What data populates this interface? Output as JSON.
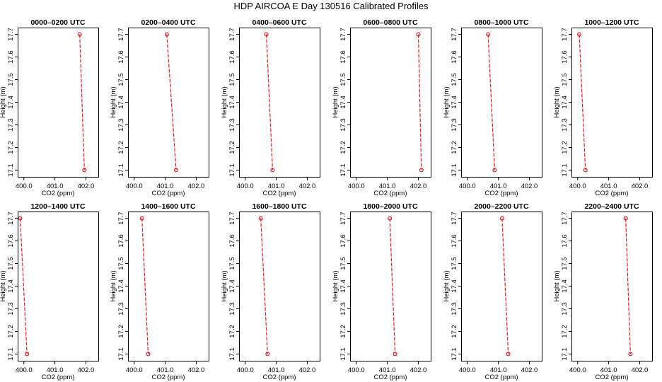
{
  "figure_title": "HDP AIRCOA E  Day 130516  Calibrated Profiles",
  "colors": {
    "series": "#e8191c",
    "axis": "#000000",
    "background": "#ffffff"
  },
  "chart_data": [
    {
      "type": "line",
      "title": "0000–0200 UTC",
      "xlabel": "CO2 (ppm)",
      "ylabel": "Height (m)",
      "x": [
        401.8,
        401.95
      ],
      "y": [
        17.7,
        17.1
      ],
      "xlim": [
        399.8,
        402.4
      ],
      "ylim": [
        17.07,
        17.73
      ],
      "xticks": [
        "400.0",
        "401.0",
        "402.0"
      ],
      "yticks": [
        "17.1",
        "17.2",
        "17.3",
        "17.4",
        "17.5",
        "17.6",
        "17.7"
      ]
    },
    {
      "type": "line",
      "title": "0200–0400 UTC",
      "xlabel": "CO2 (ppm)",
      "ylabel": "Height (m)",
      "x": [
        401.05,
        401.35
      ],
      "y": [
        17.7,
        17.1
      ],
      "xlim": [
        399.8,
        402.4
      ],
      "ylim": [
        17.07,
        17.73
      ],
      "xticks": [
        "400.0",
        "401.0",
        "402.0"
      ],
      "yticks": [
        "17.1",
        "17.2",
        "17.3",
        "17.4",
        "17.5",
        "17.6",
        "17.7"
      ]
    },
    {
      "type": "line",
      "title": "0400–0600 UTC",
      "xlabel": "CO2 (ppm)",
      "ylabel": "Height (m)",
      "x": [
        400.68,
        400.88
      ],
      "y": [
        17.7,
        17.1
      ],
      "xlim": [
        399.8,
        402.4
      ],
      "ylim": [
        17.07,
        17.73
      ],
      "xticks": [
        "400.0",
        "401.0",
        "402.0"
      ],
      "yticks": [
        "17.1",
        "17.2",
        "17.3",
        "17.4",
        "17.5",
        "17.6",
        "17.7"
      ]
    },
    {
      "type": "line",
      "title": "0600–0800 UTC",
      "xlabel": "CO2 (ppm)",
      "ylabel": "Height (m)",
      "x": [
        402.0,
        402.1
      ],
      "y": [
        17.7,
        17.1
      ],
      "xlim": [
        399.8,
        402.4
      ],
      "ylim": [
        17.07,
        17.73
      ],
      "xticks": [
        "400.0",
        "401.0",
        "402.0"
      ],
      "yticks": [
        "17.1",
        "17.2",
        "17.3",
        "17.4",
        "17.5",
        "17.6",
        "17.7"
      ]
    },
    {
      "type": "line",
      "title": "0800–1000 UTC",
      "xlabel": "CO2 (ppm)",
      "ylabel": "Height (m)",
      "x": [
        400.67,
        400.88
      ],
      "y": [
        17.7,
        17.1
      ],
      "xlim": [
        399.8,
        402.4
      ],
      "ylim": [
        17.07,
        17.73
      ],
      "xticks": [
        "400.0",
        "401.0",
        "402.0"
      ],
      "yticks": [
        "17.1",
        "17.2",
        "17.3",
        "17.4",
        "17.5",
        "17.6",
        "17.7"
      ]
    },
    {
      "type": "line",
      "title": "1000–1200 UTC",
      "xlabel": "CO2 (ppm)",
      "ylabel": "Height (m)",
      "x": [
        400.05,
        400.25
      ],
      "y": [
        17.7,
        17.1
      ],
      "xlim": [
        399.8,
        402.4
      ],
      "ylim": [
        17.07,
        17.73
      ],
      "xticks": [
        "400.0",
        "401.0",
        "402.0"
      ],
      "yticks": [
        "17.1",
        "17.2",
        "17.3",
        "17.4",
        "17.5",
        "17.6",
        "17.7"
      ]
    },
    {
      "type": "line",
      "title": "1200–1400 UTC",
      "xlabel": "CO2 (ppm)",
      "ylabel": "Height (m)",
      "x": [
        399.88,
        400.1
      ],
      "y": [
        17.7,
        17.1
      ],
      "xlim": [
        399.8,
        402.4
      ],
      "ylim": [
        17.07,
        17.73
      ],
      "xticks": [
        "400.0",
        "401.0",
        "402.0"
      ],
      "yticks": [
        "17.1",
        "17.2",
        "17.3",
        "17.4",
        "17.5",
        "17.6",
        "17.7"
      ]
    },
    {
      "type": "line",
      "title": "1400–1600 UTC",
      "xlabel": "CO2 (ppm)",
      "ylabel": "Height (m)",
      "x": [
        400.25,
        400.45
      ],
      "y": [
        17.7,
        17.1
      ],
      "xlim": [
        399.8,
        402.4
      ],
      "ylim": [
        17.07,
        17.73
      ],
      "xticks": [
        "400.0",
        "401.0",
        "402.0"
      ],
      "yticks": [
        "17.1",
        "17.2",
        "17.3",
        "17.4",
        "17.5",
        "17.6",
        "17.7"
      ]
    },
    {
      "type": "line",
      "title": "1600–1800 UTC",
      "xlabel": "CO2 (ppm)",
      "ylabel": "Height (m)",
      "x": [
        400.5,
        400.72
      ],
      "y": [
        17.7,
        17.1
      ],
      "xlim": [
        399.8,
        402.4
      ],
      "ylim": [
        17.07,
        17.73
      ],
      "xticks": [
        "400.0",
        "401.0",
        "402.0"
      ],
      "yticks": [
        "17.1",
        "17.2",
        "17.3",
        "17.4",
        "17.5",
        "17.6",
        "17.7"
      ]
    },
    {
      "type": "line",
      "title": "1800–2000 UTC",
      "xlabel": "CO2 (ppm)",
      "ylabel": "Height (m)",
      "x": [
        401.08,
        401.25
      ],
      "y": [
        17.7,
        17.1
      ],
      "xlim": [
        399.8,
        402.4
      ],
      "ylim": [
        17.07,
        17.73
      ],
      "xticks": [
        "400.0",
        "401.0",
        "402.0"
      ],
      "yticks": [
        "17.1",
        "17.2",
        "17.3",
        "17.4",
        "17.5",
        "17.6",
        "17.7"
      ]
    },
    {
      "type": "line",
      "title": "2000–2200 UTC",
      "xlabel": "CO2 (ppm)",
      "ylabel": "Height (m)",
      "x": [
        401.12,
        401.32
      ],
      "y": [
        17.7,
        17.1
      ],
      "xlim": [
        399.8,
        402.4
      ],
      "ylim": [
        17.07,
        17.73
      ],
      "xticks": [
        "400.0",
        "401.0",
        "402.0"
      ],
      "yticks": [
        "17.1",
        "17.2",
        "17.3",
        "17.4",
        "17.5",
        "17.6",
        "17.7"
      ]
    },
    {
      "type": "line",
      "title": "2200–2400 UTC",
      "xlabel": "CO2 (ppm)",
      "ylabel": "Height (m)",
      "x": [
        401.55,
        401.7
      ],
      "y": [
        17.7,
        17.1
      ],
      "xlim": [
        399.8,
        402.4
      ],
      "ylim": [
        17.07,
        17.73
      ],
      "xticks": [
        "400.0",
        "401.0",
        "402.0"
      ],
      "yticks": [
        "17.1",
        "17.2",
        "17.3",
        "17.4",
        "17.5",
        "17.6",
        "17.7"
      ]
    }
  ]
}
